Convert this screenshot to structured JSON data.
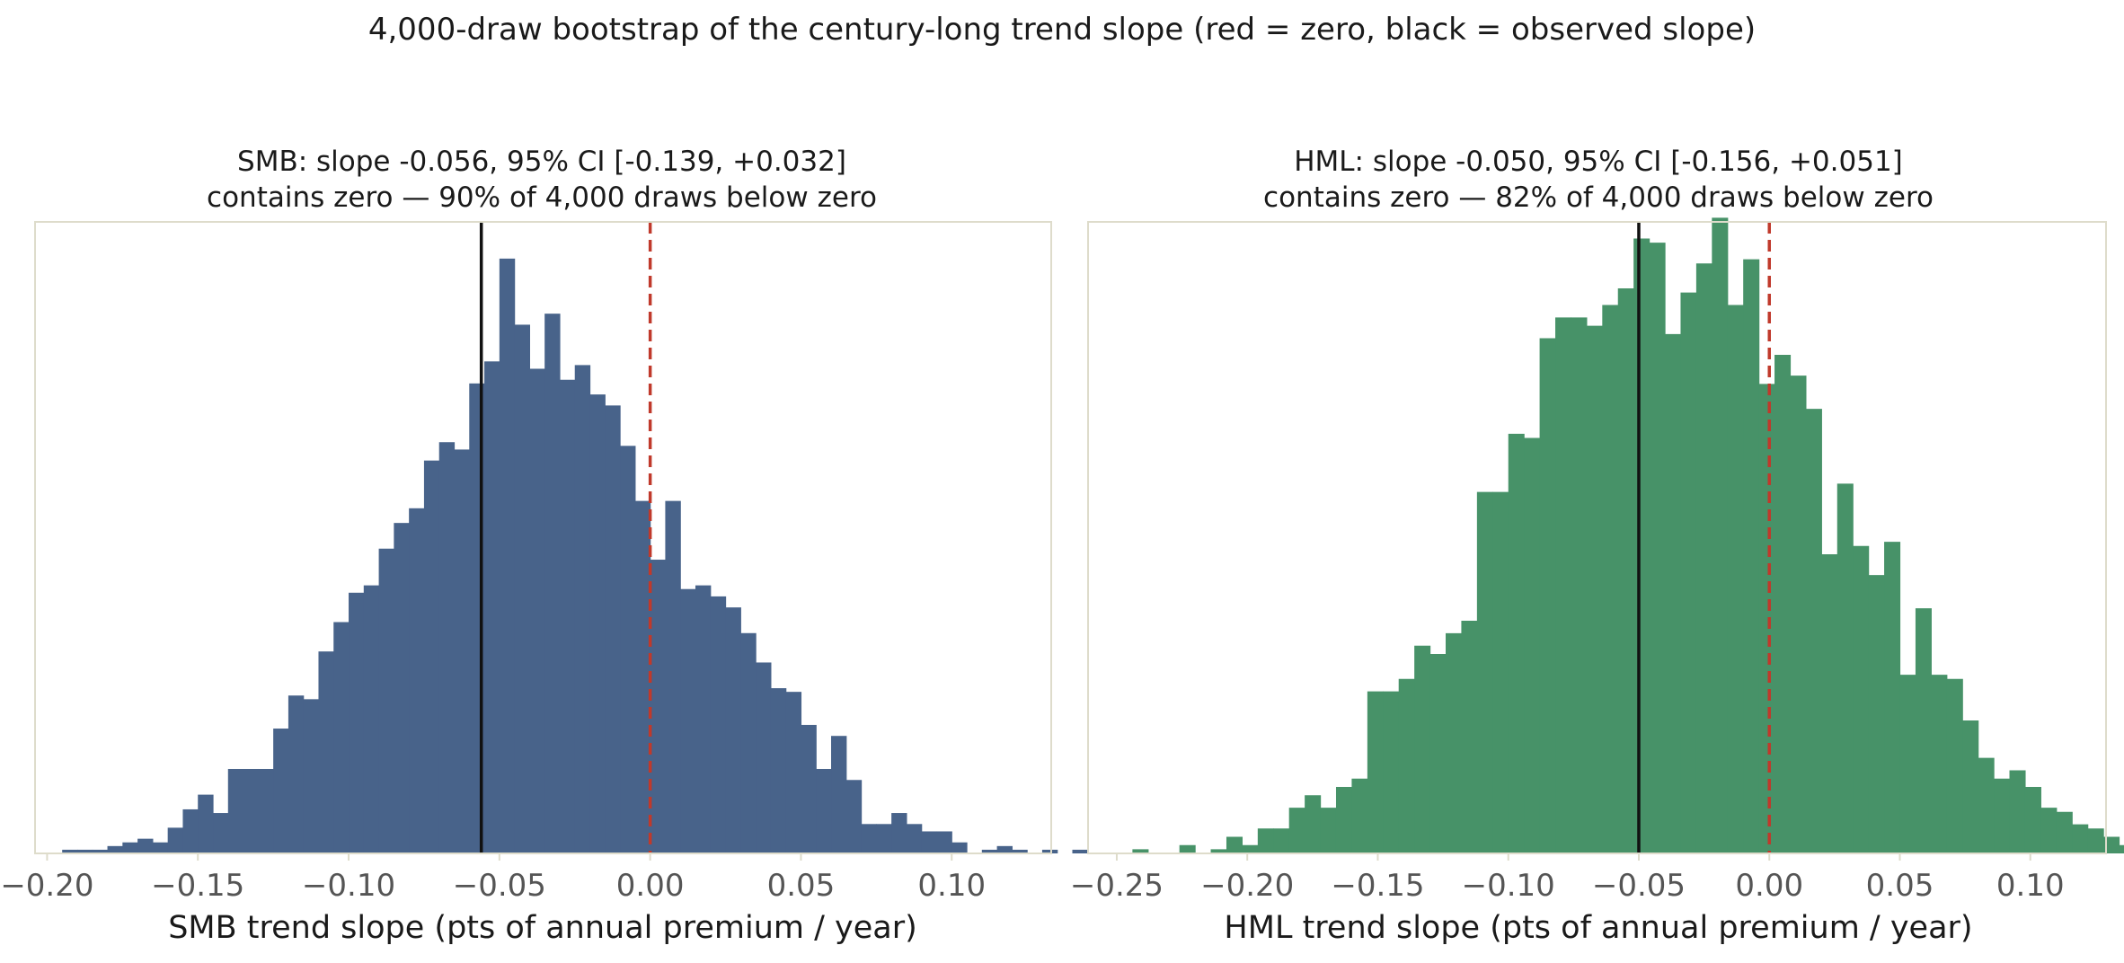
{
  "figure": {
    "suptitle": "4,000-draw bootstrap of the century-long trend slope (red = zero, black = observed slope)"
  },
  "chart_data": [
    {
      "type": "bar",
      "subtype": "histogram",
      "title_line1": "SMB: slope -0.056, 95% CI [-0.139, +0.032]",
      "title_line2": "contains zero — 90% of 4,000 draws below zero",
      "xlabel": "SMB trend slope (pts of annual premium / year)",
      "ylabel": "",
      "xlim": [
        -0.204,
        0.133
      ],
      "xticks": [
        -0.2,
        -0.15,
        -0.1,
        -0.05,
        0.0,
        0.05,
        0.1
      ],
      "xtick_labels": [
        "−0.20",
        "−0.15",
        "−0.10",
        "−0.05",
        "0.00",
        "0.05",
        "0.10"
      ],
      "ylim": [
        0,
        172
      ],
      "yticks": "none",
      "grid": false,
      "color": "#48638a",
      "observed_slope": -0.056,
      "zero_line": 0.0,
      "bin_start": -0.195,
      "bin_width": 0.005,
      "counts": [
        1,
        1,
        1,
        2,
        3,
        4,
        3,
        7,
        12,
        16,
        11,
        23,
        23,
        23,
        34,
        43,
        42,
        55,
        63,
        71,
        73,
        83,
        90,
        94,
        107,
        112,
        110,
        128,
        134,
        162,
        144,
        132,
        147,
        129,
        133,
        125,
        122,
        111,
        96,
        80,
        96,
        72,
        73,
        70,
        67,
        60,
        52,
        45,
        44,
        35,
        23,
        32,
        20,
        8,
        8,
        11,
        8,
        6,
        6,
        3,
        0,
        1,
        2,
        1,
        0,
        1,
        0,
        1
      ]
    },
    {
      "type": "bar",
      "subtype": "histogram",
      "title_line1": "HML: slope -0.050, 95% CI [-0.156, +0.051]",
      "title_line2": "contains zero — 82% of 4,000 draws below zero",
      "xlabel": "HML trend slope (pts of annual premium / year)",
      "ylabel": "",
      "xlim": [
        -0.261,
        0.129
      ],
      "xticks": [
        -0.25,
        -0.2,
        -0.15,
        -0.1,
        -0.05,
        0.0,
        0.05,
        0.1
      ],
      "xtick_labels": [
        "−0.25",
        "−0.20",
        "−0.15",
        "−0.10",
        "−0.05",
        "0.00",
        "0.05",
        "0.10"
      ],
      "ylim": [
        0,
        152
      ],
      "yticks": "none",
      "grid": false,
      "color": "#479268",
      "observed_slope": -0.05,
      "zero_line": 0.0,
      "bin_start": -0.25,
      "bin_width": 0.006,
      "counts": [
        0,
        1,
        0,
        0,
        2,
        0,
        1,
        4,
        2,
        6,
        6,
        11,
        14,
        11,
        16,
        18,
        39,
        39,
        42,
        50,
        48,
        53,
        56,
        87,
        87,
        101,
        100,
        124,
        129,
        129,
        127,
        132,
        136,
        148,
        147,
        125,
        135,
        142,
        153,
        132,
        143,
        113,
        120,
        115,
        107,
        72,
        89,
        74,
        67,
        75,
        43,
        59,
        43,
        42,
        32,
        23,
        18,
        20,
        16,
        11,
        10,
        7,
        6,
        4,
        2,
        5,
        4,
        1,
        3
      ]
    }
  ]
}
